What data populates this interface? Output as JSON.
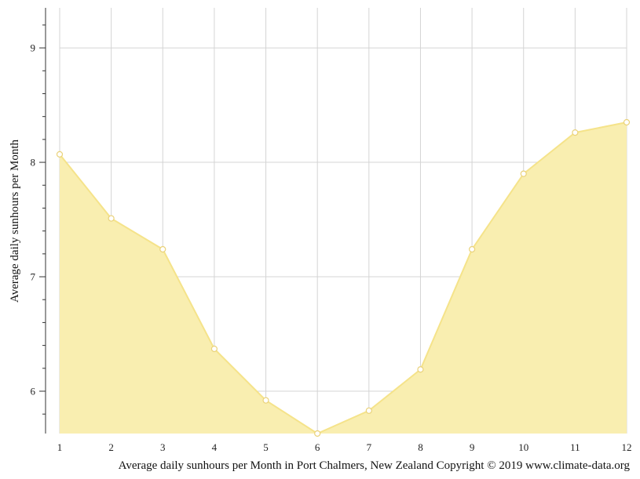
{
  "chart_data": {
    "type": "area",
    "title": "",
    "xlabel": "",
    "ylabel": "Average daily sunhours per Month",
    "caption": "Average daily sunhours per Month in Port Chalmers, New Zealand Copyright © 2019 www.climate-data.org",
    "x": [
      1,
      2,
      3,
      4,
      5,
      6,
      7,
      8,
      9,
      10,
      11,
      12
    ],
    "y": [
      8.07,
      7.51,
      7.24,
      6.37,
      5.92,
      5.63,
      5.83,
      6.19,
      7.24,
      7.9,
      8.26,
      8.35
    ],
    "xlim": [
      1,
      12
    ],
    "ylim": [
      5.63,
      9.35
    ],
    "yticks": [
      6,
      7,
      8,
      9
    ],
    "grid": true,
    "colors": {
      "fill": "#f9eeb0",
      "line": "#f5e38a",
      "marker_stroke": "#ead27a",
      "grid": "#d4d4d4",
      "axis": "#333333"
    }
  }
}
